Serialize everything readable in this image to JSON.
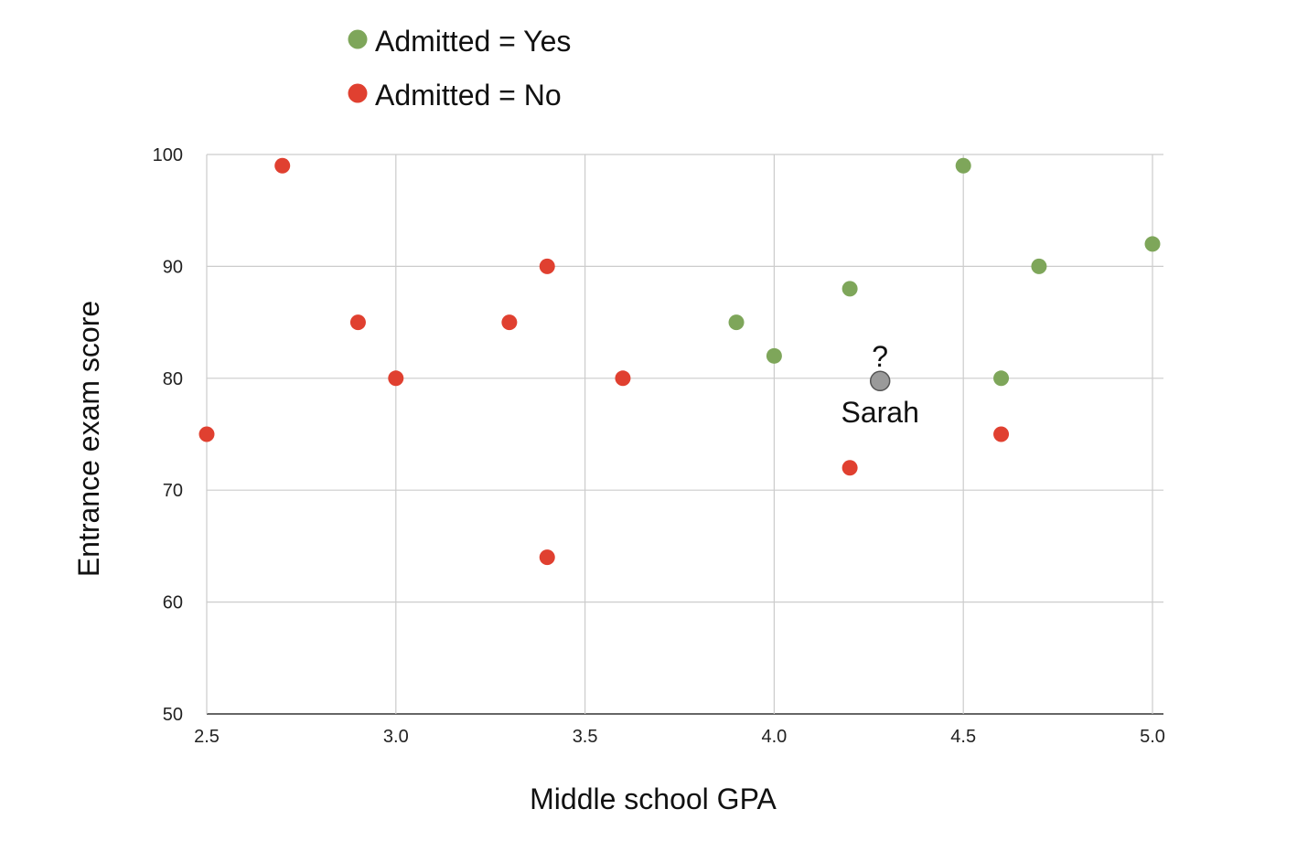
{
  "chart_data": {
    "type": "scatter",
    "xlabel": "Middle school GPA",
    "ylabel": "Entrance exam score",
    "xlim": [
      2.5,
      5.0
    ],
    "ylim": [
      50,
      100
    ],
    "xticks": [
      "2.5",
      "3.0",
      "3.5",
      "4.0",
      "4.5",
      "5.0"
    ],
    "yticks": [
      "50",
      "60",
      "70",
      "80",
      "90",
      "100"
    ],
    "grid": true,
    "legend_position": "top-left",
    "series": [
      {
        "name": "Admitted = Yes",
        "color": "#7ea65a",
        "points": [
          {
            "x": 3.9,
            "y": 85
          },
          {
            "x": 4.0,
            "y": 82
          },
          {
            "x": 4.2,
            "y": 88
          },
          {
            "x": 4.5,
            "y": 99
          },
          {
            "x": 4.6,
            "y": 80
          },
          {
            "x": 4.7,
            "y": 90
          },
          {
            "x": 5.0,
            "y": 92
          }
        ]
      },
      {
        "name": "Admitted = No",
        "color": "#e04030",
        "points": [
          {
            "x": 2.5,
            "y": 75
          },
          {
            "x": 2.7,
            "y": 99
          },
          {
            "x": 2.9,
            "y": 85
          },
          {
            "x": 3.0,
            "y": 80
          },
          {
            "x": 3.3,
            "y": 85
          },
          {
            "x": 3.4,
            "y": 90
          },
          {
            "x": 3.4,
            "y": 64
          },
          {
            "x": 3.6,
            "y": 80
          },
          {
            "x": 4.2,
            "y": 72
          },
          {
            "x": 4.6,
            "y": 75
          }
        ]
      }
    ],
    "annotations": [
      {
        "label": "Sarah",
        "marker": "?",
        "x": 4.28,
        "y": 80,
        "color": "#9a9a9a"
      }
    ]
  }
}
